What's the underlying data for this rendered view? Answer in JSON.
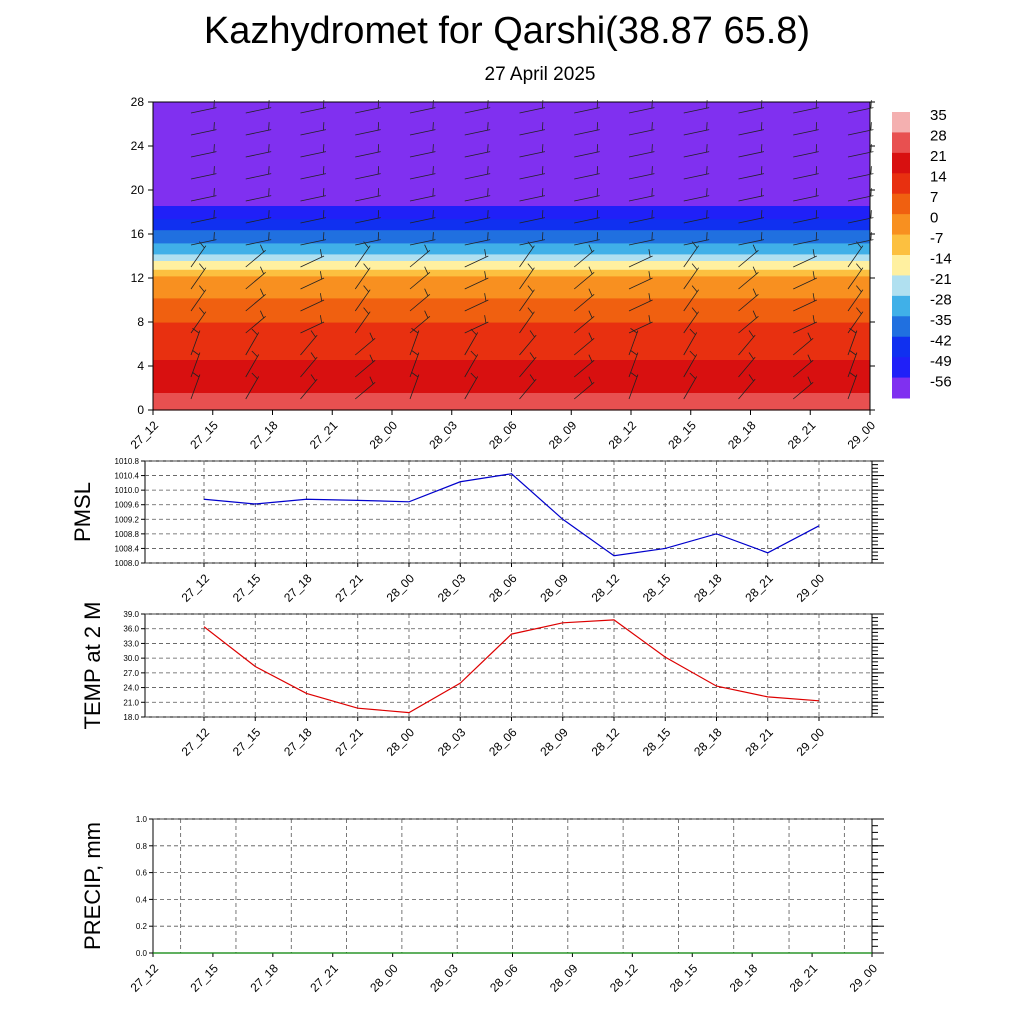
{
  "header": {
    "title": "Kazhydromet for Qarshi(38.87 65.8)",
    "subtitle": "27 April 2025"
  },
  "chart_data": [
    {
      "type": "heatmap",
      "yticks": [
        "0",
        "4",
        "8",
        "12",
        "16",
        "20",
        "24",
        "28"
      ],
      "ylim": [
        0,
        28
      ],
      "xticks": [
        "27_12",
        "27_15",
        "27_18",
        "27_21",
        "28_00",
        "28_03",
        "28_06",
        "28_09",
        "28_12",
        "28_15",
        "28_18",
        "28_21",
        "29_00"
      ],
      "colorbar": {
        "labels": [
          "35",
          "28",
          "21",
          "14",
          "7",
          "0",
          "-7",
          "-14",
          "-21",
          "-28",
          "-35",
          "-42",
          "-49",
          "-56"
        ],
        "colors": [
          "#f4b0b0",
          "#e85050",
          "#d81010",
          "#e83010",
          "#f06010",
          "#f89020",
          "#fcc040",
          "#fff0a0",
          "#b0e0f0",
          "#40b0e8",
          "#2070e0",
          "#1030f0",
          "#2020f8",
          "#8030f0"
        ]
      },
      "temperature_profile": [
        {
          "level": 0,
          "value": 33
        },
        {
          "level": 2,
          "value": 27
        },
        {
          "level": 4,
          "value": 22
        },
        {
          "level": 6,
          "value": 19
        },
        {
          "level": 8,
          "value": 14
        },
        {
          "level": 10,
          "value": 8
        },
        {
          "level": 12,
          "value": 1
        },
        {
          "level": 13,
          "value": -8
        },
        {
          "level": 14,
          "value": -20
        },
        {
          "level": 16,
          "value": -33
        },
        {
          "level": 18,
          "value": -46
        },
        {
          "level": 20,
          "value": -57
        },
        {
          "level": 28,
          "value": -60
        }
      ],
      "wind_barbs": true
    },
    {
      "type": "line",
      "ylabel": "PMSL",
      "yticks": [
        "1010.8",
        "1010.4",
        "1010.0",
        "1009.6",
        "1009.2",
        "1008.8",
        "1008.4",
        "1008.0"
      ],
      "ylim": [
        1008.0,
        1010.8
      ],
      "x": [
        "27_12",
        "27_15",
        "27_18",
        "27_21",
        "28_00",
        "28_03",
        "28_06",
        "28_09",
        "28_12",
        "28_15",
        "28_18",
        "28_21",
        "29_00"
      ],
      "values": [
        1009.75,
        1009.62,
        1009.75,
        1009.72,
        1009.68,
        1010.23,
        1010.45,
        1009.2,
        1008.2,
        1008.4,
        1008.8,
        1008.28,
        1009.02
      ],
      "color": "#0000cc",
      "grid": true
    },
    {
      "type": "line",
      "ylabel": "TEMP at 2 M",
      "yticks": [
        "39.0",
        "36.0",
        "33.0",
        "30.0",
        "27.0",
        "24.0",
        "21.0",
        "18.0"
      ],
      "ylim": [
        18.0,
        39.0
      ],
      "x": [
        "27_12",
        "27_15",
        "27_18",
        "27_21",
        "28_00",
        "28_03",
        "28_06",
        "28_09",
        "28_12",
        "28_15",
        "28_18",
        "28_21",
        "29_00"
      ],
      "values": [
        36.4,
        28.3,
        22.8,
        19.8,
        18.9,
        24.9,
        34.9,
        37.2,
        37.8,
        30.2,
        24.3,
        22.1,
        21.3
      ],
      "color": "#dd0000",
      "grid": true
    },
    {
      "type": "line",
      "ylabel": "PRECIP, mm",
      "yticks": [
        "1.0",
        "0.8",
        "0.6",
        "0.4",
        "0.2",
        "0.0"
      ],
      "ylim": [
        0.0,
        1.0
      ],
      "x": [
        "27_12",
        "27_15",
        "27_18",
        "27_21",
        "28_00",
        "28_03",
        "28_06",
        "28_09",
        "28_12",
        "28_15",
        "28_18",
        "28_21",
        "29_00"
      ],
      "values": [
        0,
        0,
        0,
        0,
        0,
        0,
        0,
        0,
        0,
        0,
        0,
        0,
        0
      ],
      "color": "#008000",
      "grid": true
    }
  ]
}
